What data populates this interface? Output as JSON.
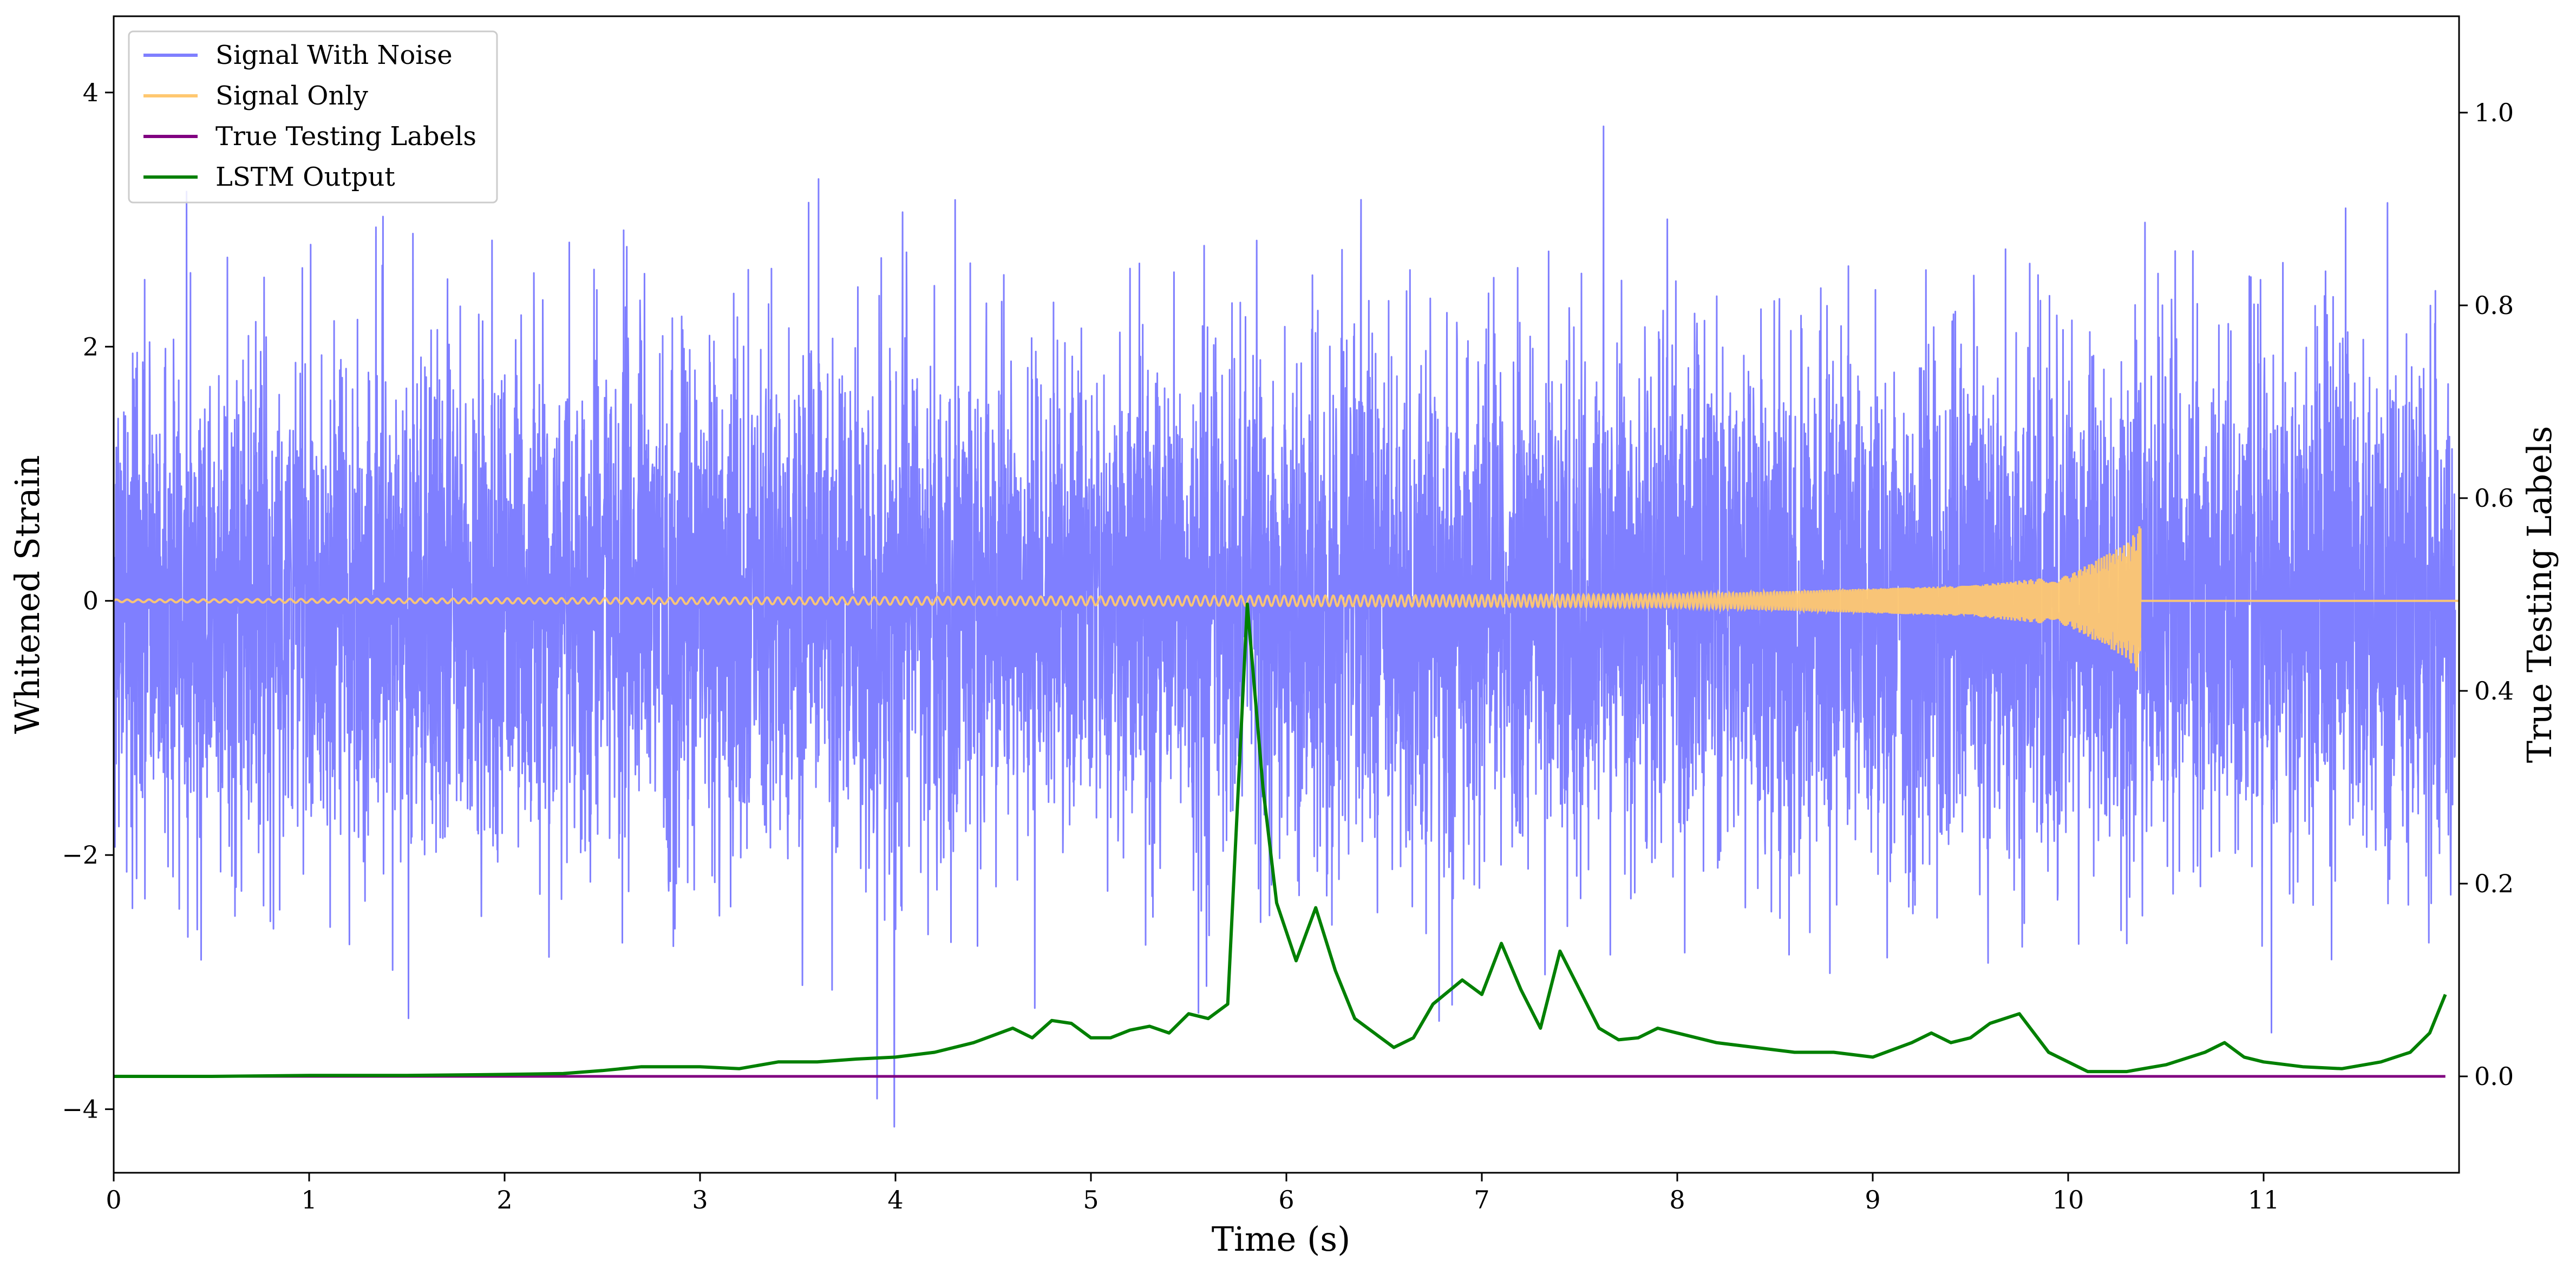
{
  "chart_data": {
    "type": "line",
    "title": "",
    "xlabel": "Time (s)",
    "ylabel_left": "Whitened Strain",
    "ylabel_right": "True Testing Labels",
    "xlim": [
      0,
      12
    ],
    "ylim_left": [
      -4.5,
      4.6
    ],
    "ylim_right": [
      -0.1,
      1.1
    ],
    "x_ticks": [
      "0",
      "1",
      "2",
      "3",
      "4",
      "5",
      "6",
      "7",
      "8",
      "9",
      "10",
      "11"
    ],
    "y_left_ticks": [
      "−4",
      "−2",
      "0",
      "2",
      "4"
    ],
    "y_right_ticks": [
      "0.0",
      "0.2",
      "0.4",
      "0.6",
      "0.8",
      "1.0"
    ],
    "grid": false,
    "legend_placement": "top-left",
    "series": [
      {
        "name": "Signal With Noise",
        "axis": "left",
        "color": "#7f7fff",
        "style": "dense noise, approx. standard deviation 1.0, peaks reaching about ±4.2",
        "noise_std": 1.0,
        "x_range": [
          0,
          11.98
        ]
      },
      {
        "name": "Signal Only",
        "axis": "left",
        "color": "#ffc870",
        "style": "chirp with growing amplitude ending at about 10.37 s",
        "amplitude_at_x": [
          [
            0,
            0.01
          ],
          [
            8.0,
            0.05
          ],
          [
            9.5,
            0.12
          ],
          [
            10.0,
            0.2
          ],
          [
            10.3,
            0.45
          ],
          [
            10.37,
            0.6
          ]
        ],
        "end_x": 10.37
      },
      {
        "name": "True Testing Labels",
        "axis": "right",
        "color": "#800080",
        "x": [
          0,
          11.93
        ],
        "y": [
          0.0,
          0.0
        ]
      },
      {
        "name": "LSTM Output",
        "axis": "right",
        "color": "#008000",
        "x": [
          0,
          0.5,
          1,
          1.5,
          2,
          2.3,
          2.5,
          2.7,
          3,
          3.2,
          3.4,
          3.6,
          3.8,
          4,
          4.2,
          4.4,
          4.6,
          4.7,
          4.8,
          4.9,
          5,
          5.1,
          5.2,
          5.3,
          5.4,
          5.5,
          5.6,
          5.7,
          5.8,
          5.88,
          5.95,
          6.05,
          6.15,
          6.25,
          6.35,
          6.45,
          6.55,
          6.65,
          6.75,
          6.9,
          7.0,
          7.1,
          7.2,
          7.3,
          7.4,
          7.5,
          7.6,
          7.7,
          7.8,
          7.9,
          8.0,
          8.2,
          8.4,
          8.6,
          8.8,
          9.0,
          9.2,
          9.3,
          9.4,
          9.5,
          9.6,
          9.75,
          9.9,
          10.1,
          10.3,
          10.5,
          10.7,
          10.8,
          10.9,
          11.0,
          11.2,
          11.4,
          11.6,
          11.75,
          11.85,
          11.93
        ],
        "y": [
          0.0,
          0.0,
          0.001,
          0.001,
          0.002,
          0.003,
          0.006,
          0.01,
          0.01,
          0.008,
          0.015,
          0.015,
          0.018,
          0.02,
          0.025,
          0.035,
          0.05,
          0.04,
          0.058,
          0.055,
          0.04,
          0.04,
          0.048,
          0.052,
          0.045,
          0.065,
          0.06,
          0.075,
          0.49,
          0.3,
          0.18,
          0.12,
          0.175,
          0.11,
          0.06,
          0.045,
          0.03,
          0.04,
          0.075,
          0.1,
          0.085,
          0.138,
          0.09,
          0.05,
          0.13,
          0.09,
          0.05,
          0.038,
          0.04,
          0.05,
          0.045,
          0.035,
          0.03,
          0.025,
          0.025,
          0.02,
          0.035,
          0.045,
          0.035,
          0.04,
          0.055,
          0.065,
          0.025,
          0.005,
          0.005,
          0.012,
          0.025,
          0.035,
          0.02,
          0.015,
          0.01,
          0.008,
          0.015,
          0.025,
          0.045,
          0.085
        ]
      }
    ]
  }
}
